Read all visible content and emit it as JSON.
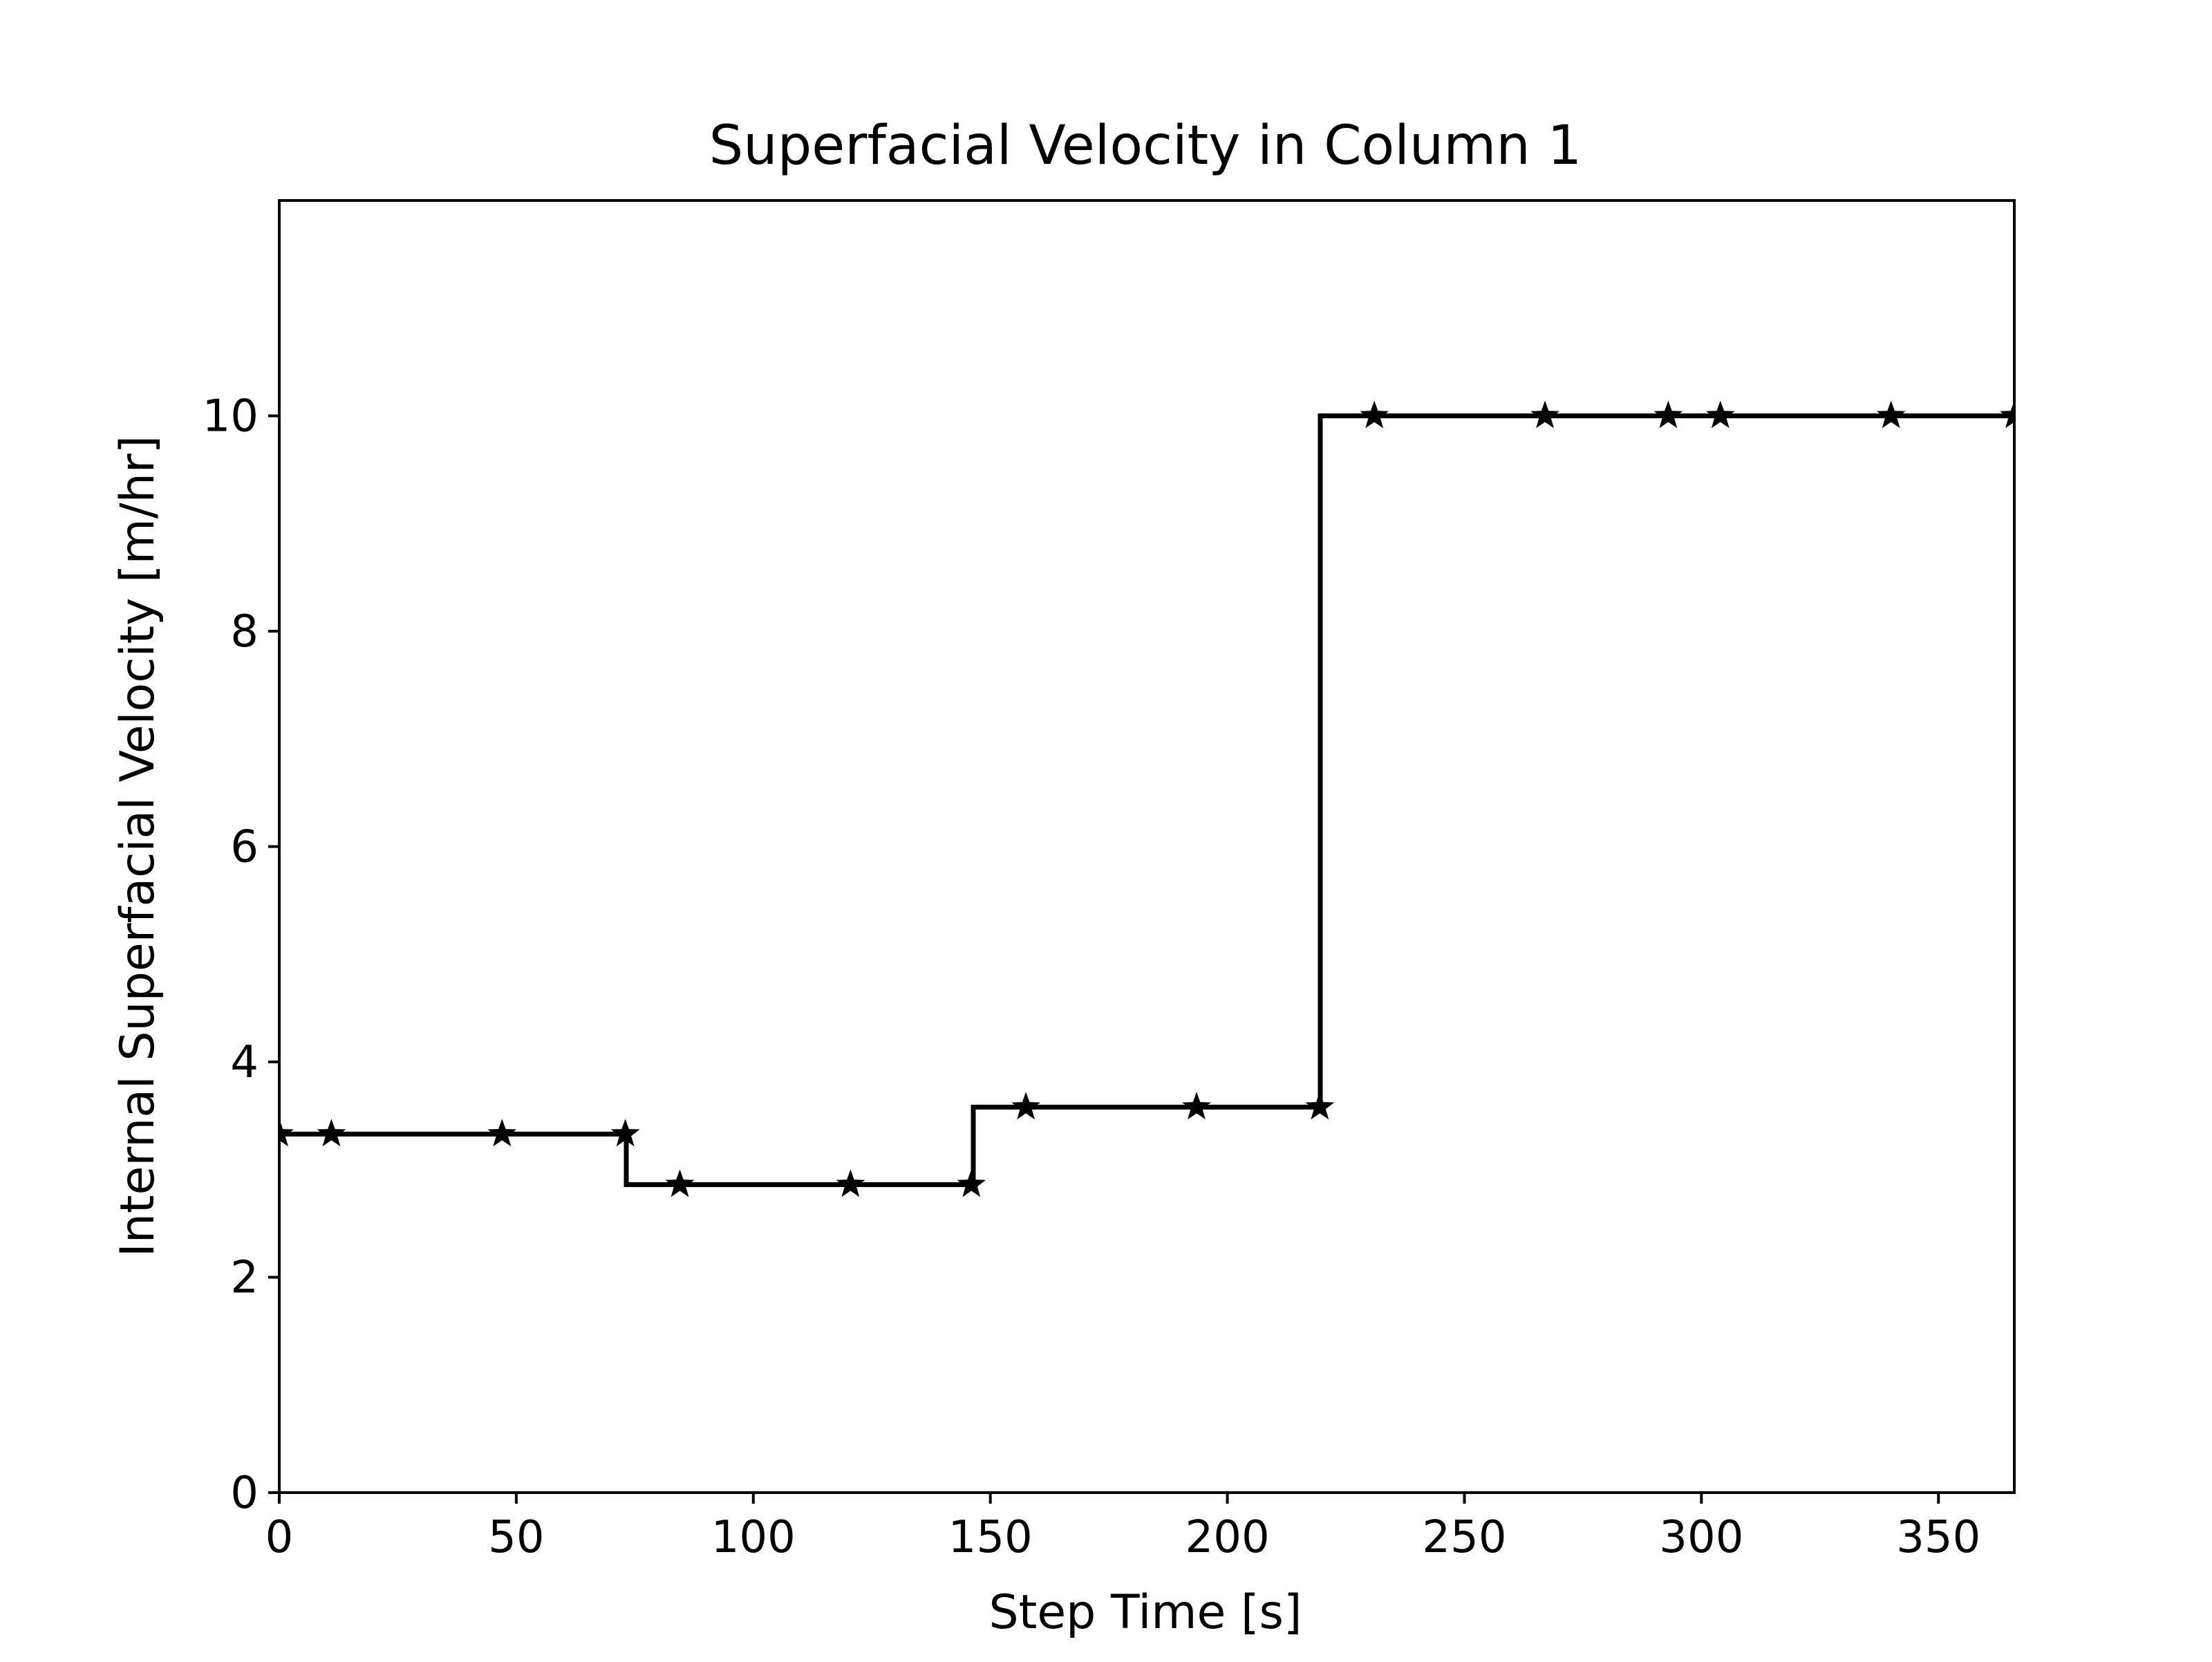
{
  "chart_data": {
    "type": "line",
    "title": "Superfacial Velocity in Column 1",
    "xlabel": "Step Time [s]",
    "ylabel": "Internal Superfacial Velocity [m/hr]",
    "xlim": [
      0,
      366
    ],
    "ylim": [
      0,
      12
    ],
    "grid": false,
    "legend": "none",
    "line_style": "steps-post",
    "marker": "star",
    "colors": {
      "line": "#000000",
      "background": "#ffffff"
    },
    "x_ticks": [
      0,
      50,
      100,
      150,
      200,
      250,
      300,
      350
    ],
    "x_tick_labels": [
      "0",
      "50",
      "100",
      "150",
      "200",
      "250",
      "300",
      "350"
    ],
    "y_ticks": [
      0,
      2,
      4,
      6,
      8,
      10
    ],
    "y_tick_labels": [
      "0",
      "2",
      "4",
      "6",
      "8",
      "10"
    ],
    "steps": [
      {
        "x_start": 0,
        "x_end": 73.2,
        "y": 3.33
      },
      {
        "x_start": 73.2,
        "x_end": 146.4,
        "y": 2.86
      },
      {
        "x_start": 146.4,
        "x_end": 219.6,
        "y": 3.58
      },
      {
        "x_start": 219.6,
        "x_end": 366,
        "y": 10.0
      }
    ],
    "series": [
      {
        "x": [
          0,
          11,
          47,
          73,
          84.5,
          120.5,
          146,
          157.5,
          193.5,
          219.5,
          231,
          267,
          293,
          304,
          340,
          366
        ],
        "y": [
          3.33,
          3.33,
          3.33,
          3.33,
          2.86,
          2.86,
          2.86,
          3.58,
          3.58,
          3.58,
          10,
          10,
          10,
          10,
          10,
          10
        ]
      }
    ]
  }
}
